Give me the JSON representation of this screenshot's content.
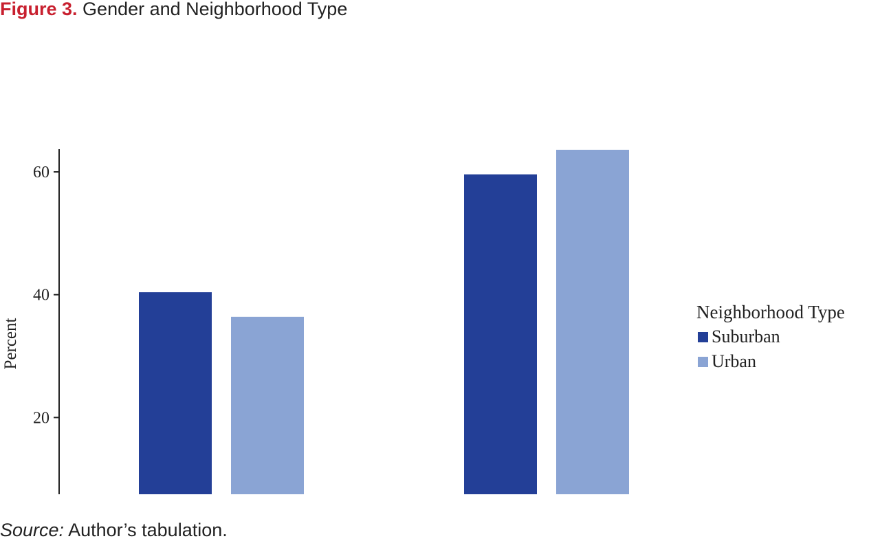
{
  "title": {
    "label": "Figure 3.",
    "text": "Gender and Neighborhood Type"
  },
  "source": {
    "label": "Source:",
    "text": "Author’s tabulation."
  },
  "colors": {
    "title_label": "#c8202f",
    "suburban": "#233f97",
    "urban": "#8aa4d4",
    "axis": "#222222"
  },
  "legend": {
    "title": "Neighborhood Type",
    "position": "right"
  },
  "chart_data": {
    "type": "bar",
    "title": "Gender and Neighborhood Type",
    "categories": [
      "",
      ""
    ],
    "series": [
      {
        "name": "Suburban",
        "color": "#233f97",
        "values": [
          40.4,
          59.6
        ]
      },
      {
        "name": "Urban",
        "color": "#8aa4d4",
        "values": [
          36.4,
          63.6
        ]
      }
    ],
    "xlabel": "",
    "ylabel": "Percent",
    "ylim": [
      7.5,
      63.7
    ],
    "yticks": [
      20,
      40,
      60
    ],
    "grid": false,
    "legend": "right"
  }
}
